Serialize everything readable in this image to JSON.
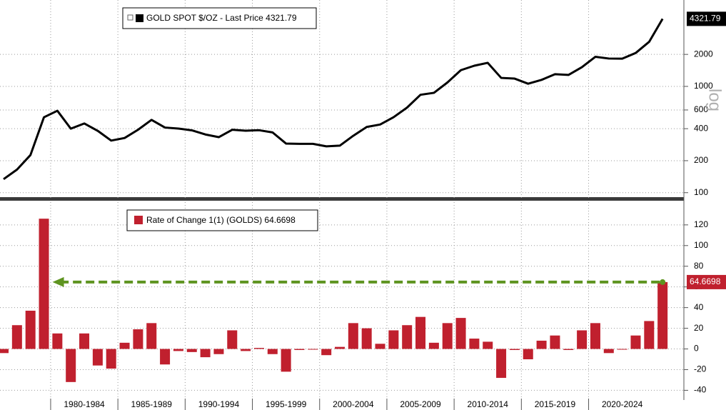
{
  "chart_data": [
    {
      "type": "line",
      "x": [
        1976,
        1977,
        1978,
        1979,
        1980,
        1981,
        1982,
        1983,
        1984,
        1985,
        1986,
        1987,
        1988,
        1989,
        1990,
        1991,
        1992,
        1993,
        1994,
        1995,
        1996,
        1997,
        1998,
        1999,
        2000,
        2001,
        2002,
        2003,
        2004,
        2005,
        2006,
        2007,
        2008,
        2009,
        2010,
        2011,
        2012,
        2013,
        2014,
        2015,
        2016,
        2017,
        2018,
        2019,
        2020,
        2021,
        2022,
        2023,
        2024,
        2025
      ],
      "series": [
        {
          "name": "GOLD SPOT $/OZ - Last Price 4321.79",
          "color": "#000000",
          "last_value_label": "4321.79",
          "values": [
            134,
            165,
            226,
            512,
            590,
            400,
            448,
            382,
            309,
            327,
            391,
            484,
            410,
            401,
            386,
            353,
            333,
            391,
            383,
            387,
            369,
            290,
            288,
            288,
            273,
            277,
            343,
            415,
            438,
            513,
            632,
            834,
            870,
            1088,
            1421,
            1565,
            1666,
            1202,
            1184,
            1060,
            1152,
            1303,
            1282,
            1517,
            1898,
            1829,
            1824,
            2063,
            2625,
            4321.79
          ]
        }
      ],
      "ylim": [
        88,
        6500
      ],
      "yticks": [
        100,
        200,
        400,
        600,
        1000,
        2000
      ],
      "log_scale": true,
      "y_axis_label": "log",
      "grid": true
    },
    {
      "type": "bar",
      "x": [
        1976,
        1977,
        1978,
        1979,
        1980,
        1981,
        1982,
        1983,
        1984,
        1985,
        1986,
        1987,
        1988,
        1989,
        1990,
        1991,
        1992,
        1993,
        1994,
        1995,
        1996,
        1997,
        1998,
        1999,
        2000,
        2001,
        2002,
        2003,
        2004,
        2005,
        2006,
        2007,
        2008,
        2009,
        2010,
        2011,
        2012,
        2013,
        2014,
        2015,
        2016,
        2017,
        2018,
        2019,
        2020,
        2021,
        2022,
        2023,
        2024,
        2025
      ],
      "series": [
        {
          "name": "Rate of Change 1(1) (GOLDS) 64.6698",
          "color": "#c0202e",
          "last_value_label": "64.6698",
          "values": [
            -4,
            23,
            37,
            126,
            15,
            -32,
            15,
            -16,
            -19,
            6,
            19,
            25,
            -15,
            -2,
            -3,
            -8,
            -5,
            18,
            -2,
            1,
            -5,
            -22,
            -1,
            0,
            -6,
            2,
            25,
            20,
            5,
            18,
            23,
            31,
            6,
            25,
            30,
            10,
            7,
            -28,
            -1,
            -10,
            8,
            13,
            -1,
            18,
            25,
            -4,
            0,
            13,
            27,
            64.6698
          ]
        }
      ],
      "ylim": [
        -48,
        142
      ],
      "yticks": [
        -40,
        -20,
        0,
        20,
        40,
        60,
        80,
        100,
        120
      ],
      "grid": true,
      "xticks": [
        {
          "value": 1980,
          "label": "1980-1984"
        },
        {
          "value": 1985,
          "label": "1985-1989"
        },
        {
          "value": 1990,
          "label": "1990-1994"
        },
        {
          "value": 1995,
          "label": "1995-1999"
        },
        {
          "value": 2000,
          "label": "2000-2004"
        },
        {
          "value": 2005,
          "label": "2005-2009"
        },
        {
          "value": 2010,
          "label": "2010-2014"
        },
        {
          "value": 2015,
          "label": "2015-2019"
        },
        {
          "value": 2020,
          "label": "2020-2024"
        }
      ]
    }
  ]
}
